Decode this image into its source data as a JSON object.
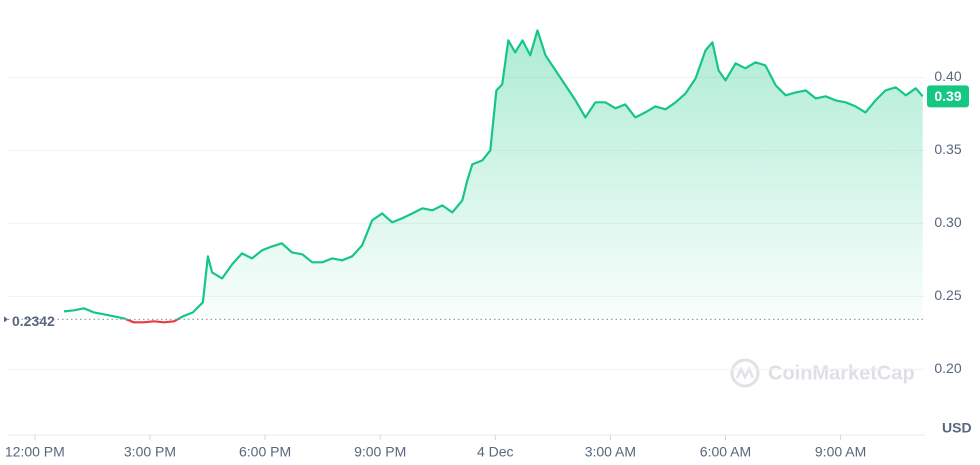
{
  "chart_data": {
    "type": "line",
    "x": [
      0.76,
      1.02,
      1.28,
      1.54,
      1.8,
      2.06,
      2.32,
      2.58,
      2.84,
      3.1,
      3.37,
      3.63,
      3.86,
      4.12,
      4.38,
      4.51,
      4.62,
      4.88,
      5.14,
      5.4,
      5.66,
      5.92,
      6.18,
      6.44,
      6.7,
      6.97,
      7.23,
      7.49,
      7.75,
      8.01,
      8.27,
      8.53,
      8.79,
      9.05,
      9.31,
      9.57,
      9.84,
      10.1,
      10.36,
      10.62,
      10.88,
      11.14,
      11.27,
      11.4,
      11.66,
      11.87,
      12.03,
      12.18,
      12.34,
      12.52,
      12.71,
      12.91,
      13.1,
      13.31,
      13.57,
      13.83,
      14.09,
      14.35,
      14.61,
      14.87,
      15.13,
      15.39,
      15.65,
      15.91,
      16.17,
      16.44,
      16.7,
      16.96,
      17.22,
      17.48,
      17.66,
      17.82,
      18.0,
      18.26,
      18.52,
      18.78,
      19.04,
      19.31,
      19.57,
      19.83,
      20.09,
      20.35,
      20.61,
      20.87,
      21.13,
      21.39,
      21.65,
      21.91,
      22.17,
      22.44,
      22.7,
      22.96,
      23.14
    ],
    "series": [
      {
        "name": "Price",
        "color": "#16c784",
        "below_color": "#ea3943",
        "values": [
          0.2397,
          0.2404,
          0.2418,
          0.239,
          0.2377,
          0.2363,
          0.2349,
          0.2322,
          0.2322,
          0.2329,
          0.2322,
          0.2329,
          0.2363,
          0.239,
          0.2459,
          0.2774,
          0.2664,
          0.2623,
          0.2719,
          0.2794,
          0.276,
          0.2815,
          0.2842,
          0.2863,
          0.2801,
          0.2788,
          0.2733,
          0.2733,
          0.276,
          0.2747,
          0.2774,
          0.2849,
          0.302,
          0.3068,
          0.3007,
          0.3034,
          0.3068,
          0.3103,
          0.3089,
          0.3123,
          0.3075,
          0.3157,
          0.3294,
          0.3404,
          0.3431,
          0.35,
          0.3911,
          0.3952,
          0.4253,
          0.4171,
          0.4253,
          0.4151,
          0.4322,
          0.4151,
          0.4048,
          0.3945,
          0.3842,
          0.3726,
          0.3829,
          0.3829,
          0.3788,
          0.3815,
          0.3726,
          0.376,
          0.3801,
          0.3781,
          0.3829,
          0.389,
          0.3993,
          0.4185,
          0.424,
          0.4048,
          0.3979,
          0.4096,
          0.4062,
          0.4103,
          0.4082,
          0.3945,
          0.3877,
          0.3897,
          0.3911,
          0.3856,
          0.387,
          0.3842,
          0.3829,
          0.3801,
          0.376,
          0.3842,
          0.3911,
          0.3932,
          0.3877,
          0.3925,
          0.387
        ]
      }
    ],
    "xlim": [
      -0.7,
      23.2
    ],
    "xticks": [
      {
        "value": 0,
        "label": "12:00 PM"
      },
      {
        "value": 3,
        "label": "3:00 PM"
      },
      {
        "value": 6,
        "label": "6:00 PM"
      },
      {
        "value": 9,
        "label": "9:00 PM"
      },
      {
        "value": 12,
        "label": "4 Dec"
      },
      {
        "value": 15,
        "label": "3:00 AM"
      },
      {
        "value": 18,
        "label": "6:00 AM"
      },
      {
        "value": 21,
        "label": "9:00 AM"
      }
    ],
    "ylim": [
      0.155,
      0.453
    ],
    "yticks": [
      {
        "value": 0.2,
        "label": "0.20"
      },
      {
        "value": 0.25,
        "label": "0.25"
      },
      {
        "value": 0.3,
        "label": "0.30"
      },
      {
        "value": 0.35,
        "label": "0.35"
      },
      {
        "value": 0.4,
        "label": "0.40"
      }
    ],
    "grid": true,
    "baseline": 0.2342,
    "current_label": "0.39",
    "y_unit": "USD",
    "watermark": "CoinMarketCap"
  }
}
